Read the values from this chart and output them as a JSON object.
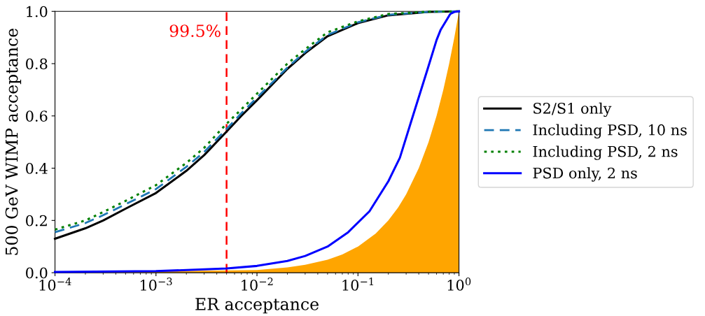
{
  "chart_data": {
    "type": "line",
    "xlabel": "ER acceptance",
    "ylabel": "500 GeV WIMP acceptance",
    "log": "x",
    "xlim": [
      0.0001,
      1
    ],
    "ylim": [
      0,
      1
    ],
    "xticks": [
      {
        "value": 0.0001,
        "label": "10$^{−4}$"
      },
      {
        "value": 0.001,
        "label": "10$^{−3}$"
      },
      {
        "value": 0.01,
        "label": "10$^{−2}$"
      },
      {
        "value": 0.1,
        "label": "10$^{−1}$"
      },
      {
        "value": 1,
        "label": "10$^{0}$"
      }
    ],
    "yticks": [
      {
        "value": 0,
        "label": "0.0"
      },
      {
        "value": 0.2,
        "label": "0.2"
      },
      {
        "value": 0.4,
        "label": "0.4"
      },
      {
        "value": 0.6,
        "label": "0.6"
      },
      {
        "value": 0.8,
        "label": "0.8"
      },
      {
        "value": 1,
        "label": "1.0"
      }
    ],
    "grid": false,
    "legend": "right",
    "series": [
      {
        "name": "S2/S1 only",
        "color": "#000000",
        "line_style": "solid",
        "x": [
          0.0001,
          0.0002,
          0.0003,
          0.0005,
          0.001,
          0.002,
          0.003,
          0.005,
          0.007,
          0.01,
          0.02,
          0.03,
          0.05,
          0.1,
          0.2,
          0.5,
          1
        ],
        "values": [
          0.13,
          0.17,
          0.2,
          0.245,
          0.305,
          0.39,
          0.45,
          0.54,
          0.6,
          0.66,
          0.78,
          0.84,
          0.905,
          0.955,
          0.985,
          0.998,
          1
        ]
      },
      {
        "name": "Including PSD, 10 ns",
        "color": "#1f77b4",
        "line_style": "dashed",
        "x": [
          0.0001,
          0.0002,
          0.0003,
          0.0005,
          0.001,
          0.002,
          0.003,
          0.005,
          0.007,
          0.01,
          0.02,
          0.03,
          0.05,
          0.1,
          0.2,
          0.5,
          1
        ],
        "values": [
          0.155,
          0.19,
          0.22,
          0.262,
          0.32,
          0.405,
          0.462,
          0.55,
          0.61,
          0.67,
          0.785,
          0.845,
          0.91,
          0.958,
          0.987,
          0.998,
          1
        ]
      },
      {
        "name": "Including PSD, 2 ns",
        "color": "#008000",
        "line_style": "dotted",
        "x": [
          0.0001,
          0.0002,
          0.0003,
          0.0005,
          0.001,
          0.002,
          0.003,
          0.005,
          0.007,
          0.01,
          0.02,
          0.03,
          0.05,
          0.1,
          0.2,
          0.5,
          1
        ],
        "values": [
          0.165,
          0.2,
          0.232,
          0.275,
          0.335,
          0.42,
          0.478,
          0.57,
          0.625,
          0.685,
          0.8,
          0.855,
          0.92,
          0.962,
          0.99,
          0.999,
          1
        ]
      },
      {
        "name": "PSD only, 2 ns",
        "color": "#0000ff",
        "line_style": "solid",
        "x": [
          0.0001,
          0.001,
          0.005,
          0.01,
          0.02,
          0.03,
          0.05,
          0.08,
          0.13,
          0.2,
          0.26,
          0.35,
          0.49,
          0.6,
          0.66,
          0.82,
          0.9,
          1
        ],
        "values": [
          0.003,
          0.006,
          0.016,
          0.026,
          0.045,
          0.064,
          0.1,
          0.155,
          0.235,
          0.35,
          0.44,
          0.6,
          0.78,
          0.89,
          0.93,
          0.99,
          0.998,
          1
        ]
      },
      {
        "type": "area",
        "color": "#ffa500",
        "x": [
          0.0001,
          0.01,
          0.02,
          0.03,
          0.05,
          0.07,
          0.1,
          0.15,
          0.2,
          0.25,
          0.3,
          0.4,
          0.5,
          0.6,
          0.7,
          0.8,
          0.9,
          1
        ],
        "values": [
          0,
          0.01,
          0.02,
          0.03,
          0.05,
          0.07,
          0.1,
          0.15,
          0.2,
          0.25,
          0.3,
          0.4,
          0.5,
          0.6,
          0.7,
          0.8,
          0.9,
          1
        ]
      }
    ],
    "ref_lines": [
      {
        "axis": "x",
        "value": 0.005,
        "color": "#ff0000",
        "line_style": "dashed"
      }
    ],
    "annotations": [
      {
        "text": "99.5%",
        "x": 0.005,
        "y": 0.92
      }
    ]
  }
}
